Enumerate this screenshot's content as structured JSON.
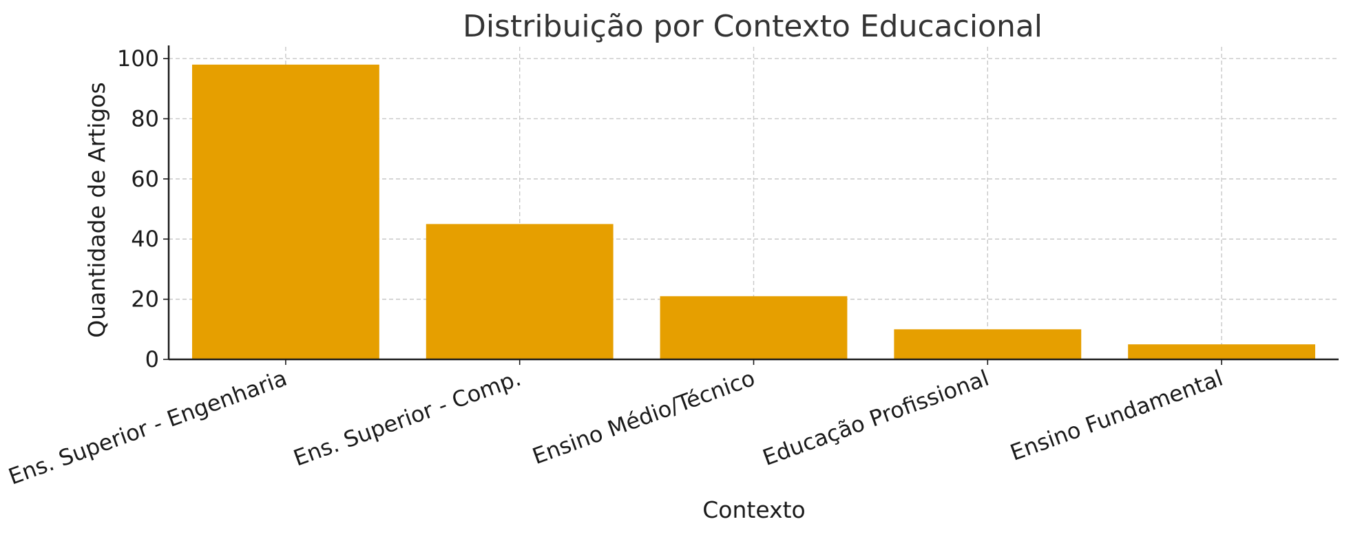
{
  "chart_data": {
    "type": "bar",
    "title": "Distribuição por Contexto Educacional",
    "xlabel": "Contexto",
    "ylabel": "Quantidade de Artigos",
    "categories": [
      "Ens. Superior - Engenharia",
      "Ens. Superior - Comp.",
      "Ensino Médio/Técnico",
      "Educação Profissional",
      "Ensino Fundamental"
    ],
    "values": [
      98,
      45,
      21,
      10,
      5
    ],
    "ylim": [
      0,
      103
    ],
    "yticks": [
      0,
      20,
      40,
      60,
      80,
      100
    ],
    "grid": true,
    "bar_color": "#E69F00",
    "legend": "none"
  }
}
